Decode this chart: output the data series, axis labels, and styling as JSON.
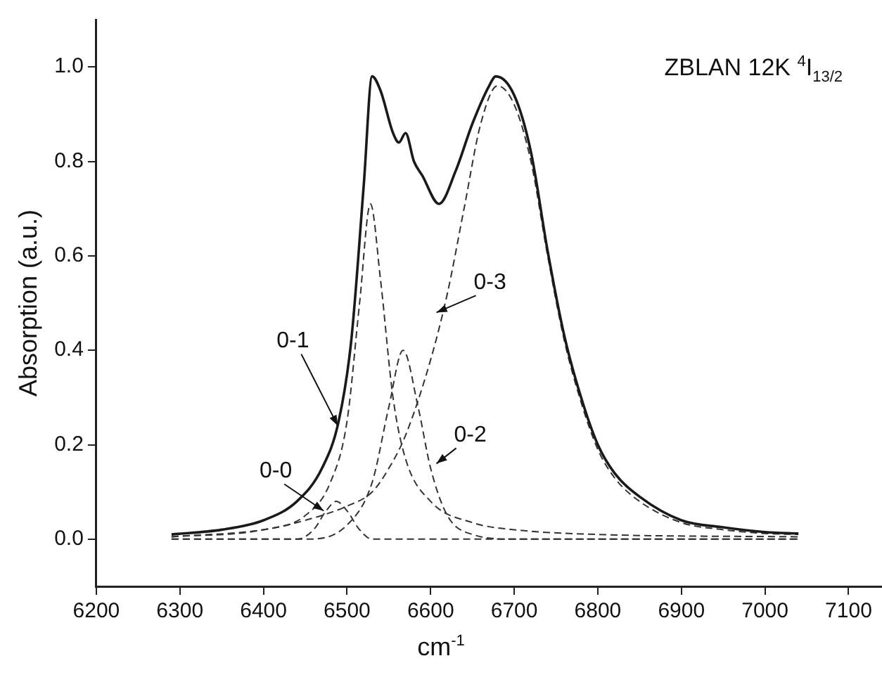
{
  "chart_data": {
    "type": "line",
    "title": "ZBLAN 12K $^{4}$I$_{13/2}$",
    "xlabel": "cm$^{-1}$",
    "ylabel": "Absorption (a.u.)",
    "xlim": [
      6200,
      7140
    ],
    "xticks": [
      6200,
      6300,
      6400,
      6500,
      6600,
      6700,
      6800,
      6900,
      7000,
      7100
    ],
    "ylim": [
      -0.1,
      1.1
    ],
    "yticks": [
      {
        "value": 0,
        "label": "0.0"
      },
      {
        "value": 0.2,
        "label": "0.2"
      },
      {
        "value": 0.4,
        "label": "0.4"
      },
      {
        "value": 0.6,
        "label": "0.6"
      },
      {
        "value": 0.8,
        "label": "0.8"
      },
      {
        "value": 1,
        "label": "1.0"
      }
    ],
    "grid": false,
    "legend": false,
    "marker": "none",
    "series": [
      {
        "color": "#1a1a1a",
        "line_style": "solid",
        "x": [
          6290,
          6350,
          6400,
          6440,
          6470,
          6490,
          6505,
          6520,
          6530,
          6540,
          6555,
          6562,
          6570,
          6580,
          6590,
          6610,
          6630,
          6650,
          6670,
          6678,
          6700,
          6720,
          6740,
          6760,
          6780,
          6800,
          6820,
          6850,
          6900,
          6950,
          7000,
          7040
        ],
        "values": [
          0.01,
          0.02,
          0.04,
          0.08,
          0.15,
          0.25,
          0.42,
          0.75,
          0.98,
          0.95,
          0.86,
          0.84,
          0.86,
          0.8,
          0.77,
          0.71,
          0.78,
          0.88,
          0.96,
          0.98,
          0.94,
          0.82,
          0.61,
          0.43,
          0.3,
          0.2,
          0.14,
          0.09,
          0.04,
          0.025,
          0.015,
          0.012
        ]
      },
      {
        "color": "#333333",
        "line_style": "dashed",
        "x": [
          6290,
          6440,
          6460,
          6475,
          6487,
          6500,
          6515,
          6530,
          7040
        ],
        "values": [
          0,
          0,
          0.02,
          0.06,
          0.08,
          0.06,
          0.02,
          0,
          0
        ]
      },
      {
        "color": "#333333",
        "line_style": "dashed",
        "x": [
          6290,
          6400,
          6450,
          6480,
          6500,
          6515,
          6528,
          6540,
          6555,
          6570,
          6600,
          6650,
          6700,
          6800,
          7040
        ],
        "values": [
          0.005,
          0.02,
          0.05,
          0.12,
          0.25,
          0.5,
          0.71,
          0.55,
          0.3,
          0.17,
          0.08,
          0.035,
          0.02,
          0.01,
          0.005
        ]
      },
      {
        "color": "#333333",
        "line_style": "dashed",
        "x": [
          6290,
          6450,
          6500,
          6530,
          6550,
          6567,
          6585,
          6600,
          6620,
          6650,
          6700,
          7040
        ],
        "values": [
          0,
          0,
          0.03,
          0.12,
          0.28,
          0.4,
          0.28,
          0.15,
          0.05,
          0.01,
          0,
          0
        ]
      },
      {
        "color": "#333333",
        "line_style": "dashed",
        "x": [
          6290,
          6400,
          6450,
          6500,
          6530,
          6550,
          6570,
          6600,
          6620,
          6640,
          6660,
          6680,
          6700,
          6720,
          6740,
          6760,
          6780,
          6800,
          6820,
          6850,
          6900,
          6950,
          7000,
          7040
        ],
        "values": [
          0.005,
          0.02,
          0.04,
          0.07,
          0.1,
          0.15,
          0.22,
          0.38,
          0.52,
          0.7,
          0.88,
          0.96,
          0.92,
          0.8,
          0.6,
          0.42,
          0.29,
          0.19,
          0.13,
          0.08,
          0.035,
          0.02,
          0.012,
          0.01
        ]
      }
    ],
    "annotations": [
      {
        "text": "0-0",
        "x": 6472,
        "y": 0.06
      },
      {
        "text": "0-1",
        "x": 6489,
        "y": 0.24
      },
      {
        "text": "0-2",
        "x": 6607,
        "y": 0.16
      },
      {
        "text": "0-3",
        "x": 6607,
        "y": 0.48
      }
    ]
  }
}
